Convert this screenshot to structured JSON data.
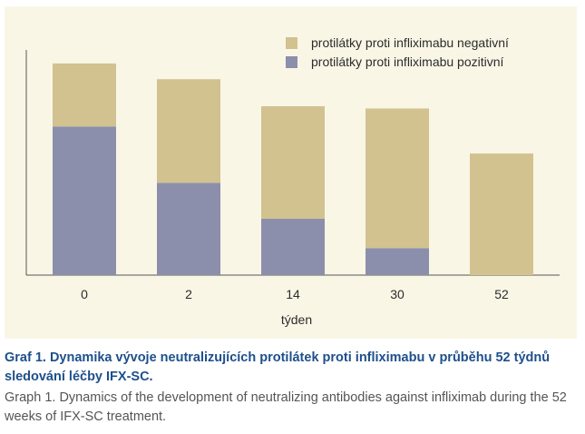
{
  "chart_data": {
    "type": "bar",
    "stacked": true,
    "categories": [
      "0",
      "2",
      "14",
      "30",
      "52"
    ],
    "series": [
      {
        "name": "protilátky proti infliximabu pozitivní",
        "color": "#8b8fab",
        "values": [
          66,
          41,
          25,
          12,
          0
        ]
      },
      {
        "name": "protilátky proti infliximabu negativní",
        "color": "#d1c290",
        "values": [
          28,
          46,
          50,
          62,
          54
        ]
      }
    ],
    "xlabel": "týden",
    "ylabel": "",
    "ylim": [
      0,
      100
    ],
    "grid": false,
    "legend": "top-right"
  },
  "caption": {
    "czech": "Graf 1. Dynamika vývoje neutralizujících protilátek proti infliximabu v průběhu 52 týdnů sledování léčby IFX-SC.",
    "english": "Graph 1. Dynamics of the development of neutralizing antibodies against infliximab during the 52 weeks of IFX-SC treatment."
  }
}
